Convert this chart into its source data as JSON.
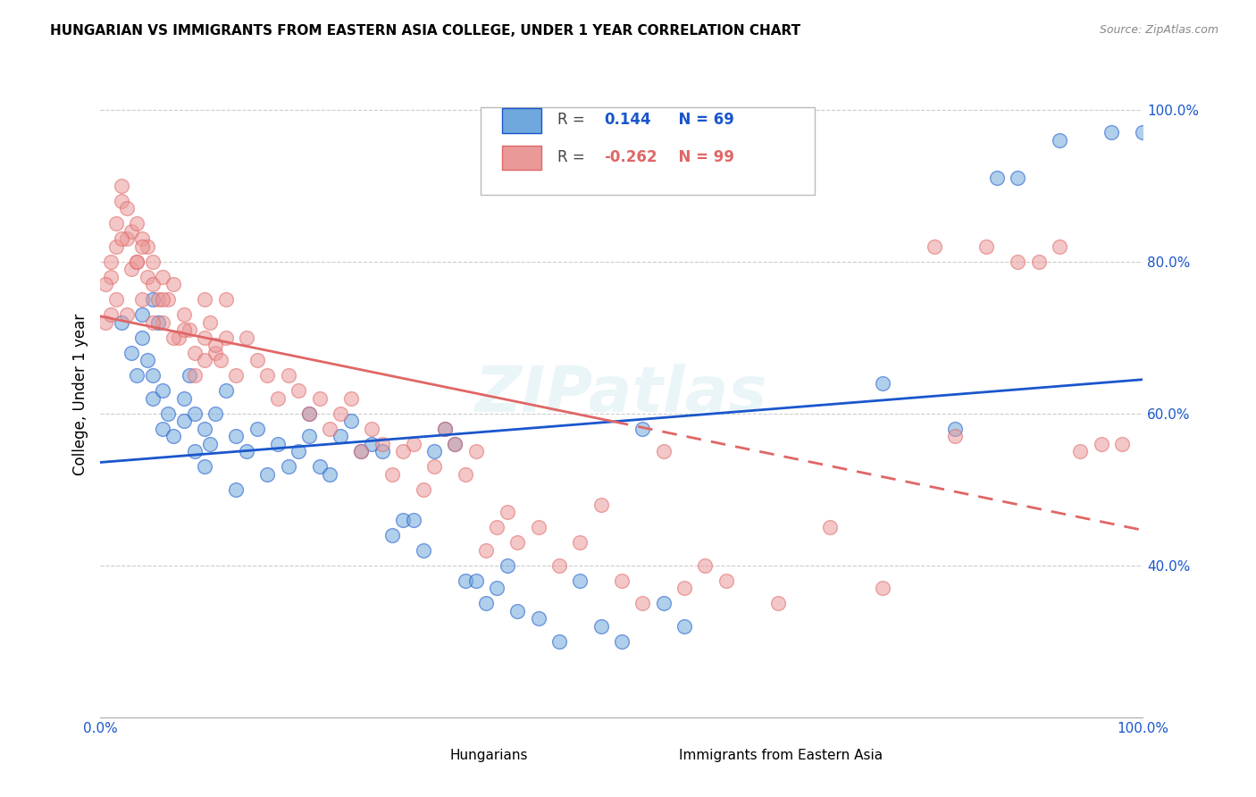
{
  "title": "HUNGARIAN VS IMMIGRANTS FROM EASTERN ASIA COLLEGE, UNDER 1 YEAR CORRELATION CHART",
  "source": "Source: ZipAtlas.com",
  "ylabel": "College, Under 1 year",
  "legend_blue_r_val": "0.144",
  "legend_blue_n": "N = 69",
  "legend_pink_r_val": "-0.262",
  "legend_pink_n": "N = 99",
  "blue_color": "#6fa8dc",
  "pink_color": "#ea9999",
  "blue_line_color": "#1a56cc",
  "pink_line_color": "#e06666",
  "watermark": "ZIPatlas",
  "blue_scatter_x": [
    0.02,
    0.03,
    0.035,
    0.04,
    0.04,
    0.045,
    0.05,
    0.05,
    0.05,
    0.055,
    0.06,
    0.06,
    0.065,
    0.07,
    0.08,
    0.08,
    0.085,
    0.09,
    0.09,
    0.1,
    0.1,
    0.105,
    0.11,
    0.12,
    0.13,
    0.13,
    0.14,
    0.15,
    0.16,
    0.17,
    0.18,
    0.19,
    0.2,
    0.2,
    0.21,
    0.22,
    0.23,
    0.24,
    0.25,
    0.26,
    0.27,
    0.28,
    0.29,
    0.3,
    0.31,
    0.32,
    0.33,
    0.34,
    0.35,
    0.36,
    0.37,
    0.38,
    0.39,
    0.4,
    0.42,
    0.44,
    0.46,
    0.48,
    0.5,
    0.52,
    0.54,
    0.56,
    0.75,
    0.82,
    0.86,
    0.88,
    0.92,
    0.97,
    1.0
  ],
  "blue_scatter_y": [
    0.72,
    0.68,
    0.65,
    0.7,
    0.73,
    0.67,
    0.75,
    0.62,
    0.65,
    0.72,
    0.58,
    0.63,
    0.6,
    0.57,
    0.59,
    0.62,
    0.65,
    0.55,
    0.6,
    0.58,
    0.53,
    0.56,
    0.6,
    0.63,
    0.57,
    0.5,
    0.55,
    0.58,
    0.52,
    0.56,
    0.53,
    0.55,
    0.57,
    0.6,
    0.53,
    0.52,
    0.57,
    0.59,
    0.55,
    0.56,
    0.55,
    0.44,
    0.46,
    0.46,
    0.42,
    0.55,
    0.58,
    0.56,
    0.38,
    0.38,
    0.35,
    0.37,
    0.4,
    0.34,
    0.33,
    0.3,
    0.38,
    0.32,
    0.3,
    0.58,
    0.35,
    0.32,
    0.64,
    0.58,
    0.91,
    0.91,
    0.96,
    0.97,
    0.97
  ],
  "pink_scatter_x": [
    0.005,
    0.01,
    0.01,
    0.015,
    0.015,
    0.02,
    0.02,
    0.025,
    0.025,
    0.03,
    0.03,
    0.035,
    0.035,
    0.04,
    0.04,
    0.045,
    0.045,
    0.05,
    0.05,
    0.055,
    0.06,
    0.06,
    0.065,
    0.07,
    0.075,
    0.08,
    0.085,
    0.09,
    0.1,
    0.1,
    0.105,
    0.11,
    0.115,
    0.12,
    0.12,
    0.13,
    0.14,
    0.15,
    0.16,
    0.17,
    0.18,
    0.19,
    0.2,
    0.21,
    0.22,
    0.23,
    0.24,
    0.25,
    0.26,
    0.27,
    0.28,
    0.29,
    0.3,
    0.31,
    0.32,
    0.33,
    0.34,
    0.35,
    0.36,
    0.37,
    0.38,
    0.39,
    0.4,
    0.42,
    0.44,
    0.46,
    0.48,
    0.5,
    0.52,
    0.54,
    0.56,
    0.58,
    0.6,
    0.65,
    0.7,
    0.75,
    0.8,
    0.82,
    0.85,
    0.88,
    0.9,
    0.92,
    0.94,
    0.96,
    0.98,
    0.005,
    0.01,
    0.02,
    0.015,
    0.025,
    0.035,
    0.04,
    0.05,
    0.06,
    0.07,
    0.08,
    0.09,
    0.1,
    0.11
  ],
  "pink_scatter_y": [
    0.72,
    0.78,
    0.8,
    0.82,
    0.85,
    0.88,
    0.9,
    0.83,
    0.87,
    0.84,
    0.79,
    0.8,
    0.85,
    0.83,
    0.75,
    0.78,
    0.82,
    0.77,
    0.8,
    0.75,
    0.78,
    0.72,
    0.75,
    0.77,
    0.7,
    0.73,
    0.71,
    0.68,
    0.75,
    0.7,
    0.72,
    0.68,
    0.67,
    0.7,
    0.75,
    0.65,
    0.7,
    0.67,
    0.65,
    0.62,
    0.65,
    0.63,
    0.6,
    0.62,
    0.58,
    0.6,
    0.62,
    0.55,
    0.58,
    0.56,
    0.52,
    0.55,
    0.56,
    0.5,
    0.53,
    0.58,
    0.56,
    0.52,
    0.55,
    0.42,
    0.45,
    0.47,
    0.43,
    0.45,
    0.4,
    0.43,
    0.48,
    0.38,
    0.35,
    0.55,
    0.37,
    0.4,
    0.38,
    0.35,
    0.45,
    0.37,
    0.82,
    0.57,
    0.82,
    0.8,
    0.8,
    0.82,
    0.55,
    0.56,
    0.56,
    0.77,
    0.73,
    0.83,
    0.75,
    0.73,
    0.8,
    0.82,
    0.72,
    0.75,
    0.7,
    0.71,
    0.65,
    0.67,
    0.69
  ]
}
